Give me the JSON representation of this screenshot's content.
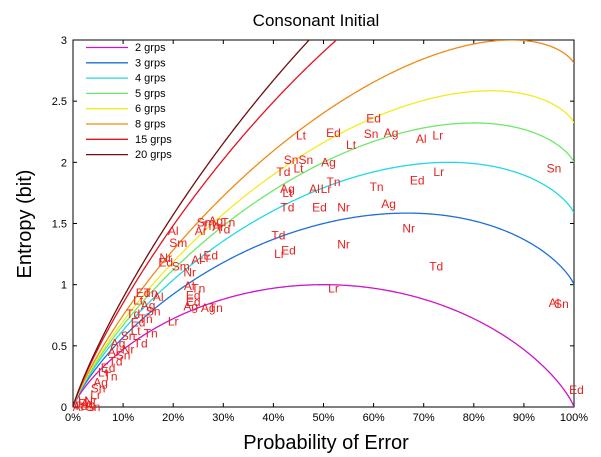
{
  "chart_data": {
    "type": "line",
    "title": "Consonant Initial",
    "xlabel": "Probability of Error",
    "ylabel": "Entropy (bit)",
    "xlim": [
      0,
      1
    ],
    "ylim": [
      0,
      3
    ],
    "xticks": [
      {
        "v": 0,
        "label": "0%"
      },
      {
        "v": 0.1,
        "label": "10%"
      },
      {
        "v": 0.2,
        "label": "20%"
      },
      {
        "v": 0.3,
        "label": "30%"
      },
      {
        "v": 0.4,
        "label": "40%"
      },
      {
        "v": 0.5,
        "label": "50%"
      },
      {
        "v": 0.6,
        "label": "60%"
      },
      {
        "v": 0.7,
        "label": "70%"
      },
      {
        "v": 0.8,
        "label": "80%"
      },
      {
        "v": 0.9,
        "label": "90%"
      },
      {
        "v": 1,
        "label": "100%"
      }
    ],
    "yticks": [
      {
        "v": 0,
        "label": "0"
      },
      {
        "v": 0.5,
        "label": "0.5"
      },
      {
        "v": 1,
        "label": "1"
      },
      {
        "v": 1.5,
        "label": "1.5"
      },
      {
        "v": 2,
        "label": "2"
      },
      {
        "v": 2.5,
        "label": "2.5"
      },
      {
        "v": 3,
        "label": "3"
      }
    ],
    "legend_position": "top-left",
    "series": [
      {
        "name": "2 grps",
        "groups": 2,
        "color": "#cc14c8"
      },
      {
        "name": "3 grps",
        "groups": 3,
        "color": "#1e6fd9"
      },
      {
        "name": "4 grps",
        "groups": 4,
        "color": "#22d8e6"
      },
      {
        "name": "5 grps",
        "groups": 5,
        "color": "#6ee86a"
      },
      {
        "name": "6 grps",
        "groups": 6,
        "color": "#f2ec1e"
      },
      {
        "name": "8 grps",
        "groups": 8,
        "color": "#ef8a16"
      },
      {
        "name": "15 grps",
        "groups": 15,
        "color": "#e0141e"
      },
      {
        "name": "20 grps",
        "groups": 20,
        "color": "#6e0e10"
      }
    ],
    "points": [
      {
        "label": "Ed",
        "x": 0.6,
        "y": 2.36
      },
      {
        "label": "Lt",
        "x": 0.455,
        "y": 2.22
      },
      {
        "label": "Ed",
        "x": 0.52,
        "y": 2.24
      },
      {
        "label": "Sn",
        "x": 0.595,
        "y": 2.23
      },
      {
        "label": "Ag",
        "x": 0.635,
        "y": 2.24
      },
      {
        "label": "Al",
        "x": 0.695,
        "y": 2.19
      },
      {
        "label": "Lr",
        "x": 0.728,
        "y": 2.22
      },
      {
        "label": "Lt",
        "x": 0.555,
        "y": 2.14
      },
      {
        "label": "Sn",
        "x": 0.96,
        "y": 1.95
      },
      {
        "label": "Ag",
        "x": 0.51,
        "y": 2.0
      },
      {
        "label": "SnSn",
        "x": 0.45,
        "y": 2.02
      },
      {
        "label": "Lt",
        "x": 0.45,
        "y": 1.95
      },
      {
        "label": "Td",
        "x": 0.42,
        "y": 1.92
      },
      {
        "label": "Tn",
        "x": 0.52,
        "y": 1.84
      },
      {
        "label": "Al",
        "x": 0.482,
        "y": 1.78
      },
      {
        "label": "Lr",
        "x": 0.505,
        "y": 1.78
      },
      {
        "label": "Ag",
        "x": 0.428,
        "y": 1.78
      },
      {
        "label": "Lt",
        "x": 0.428,
        "y": 1.75
      },
      {
        "label": "Tn",
        "x": 0.606,
        "y": 1.8
      },
      {
        "label": "Ed",
        "x": 0.687,
        "y": 1.85
      },
      {
        "label": "Lr",
        "x": 0.73,
        "y": 1.92
      },
      {
        "label": "Td",
        "x": 0.428,
        "y": 1.63
      },
      {
        "label": "Ed",
        "x": 0.492,
        "y": 1.63
      },
      {
        "label": "Nr",
        "x": 0.54,
        "y": 1.63
      },
      {
        "label": "Ag",
        "x": 0.63,
        "y": 1.66
      },
      {
        "label": "Td",
        "x": 0.41,
        "y": 1.4
      },
      {
        "label": "Nr",
        "x": 0.67,
        "y": 1.46
      },
      {
        "label": "Ed",
        "x": 0.43,
        "y": 1.28
      },
      {
        "label": "Lr",
        "x": 0.412,
        "y": 1.25
      },
      {
        "label": "Nr",
        "x": 0.54,
        "y": 1.33
      },
      {
        "label": "Td",
        "x": 0.725,
        "y": 1.15
      },
      {
        "label": "Lr",
        "x": 0.52,
        "y": 0.97
      },
      {
        "label": "Al",
        "x": 0.96,
        "y": 0.85
      },
      {
        "label": "Sn",
        "x": 0.975,
        "y": 0.84
      },
      {
        "label": "Ed",
        "x": 1.005,
        "y": 0.14
      },
      {
        "label": "Al",
        "x": 0.2,
        "y": 1.44
      },
      {
        "label": "Sm",
        "x": 0.21,
        "y": 1.34
      },
      {
        "label": "Sm",
        "x": 0.265,
        "y": 1.51
      },
      {
        "label": "Ag",
        "x": 0.285,
        "y": 1.52
      },
      {
        "label": "Tn",
        "x": 0.31,
        "y": 1.51
      },
      {
        "label": "Ar",
        "x": 0.255,
        "y": 1.44
      },
      {
        "label": "Tn",
        "x": 0.27,
        "y": 1.48
      },
      {
        "label": "Ar",
        "x": 0.29,
        "y": 1.47
      },
      {
        "label": "Td",
        "x": 0.3,
        "y": 1.45
      },
      {
        "label": "Nr",
        "x": 0.185,
        "y": 1.22
      },
      {
        "label": "Ed",
        "x": 0.185,
        "y": 1.18
      },
      {
        "label": "Sm",
        "x": 0.215,
        "y": 1.15
      },
      {
        "label": "Nr",
        "x": 0.233,
        "y": 1.1
      },
      {
        "label": "Lr",
        "x": 0.262,
        "y": 1.22
      },
      {
        "label": "Ed",
        "x": 0.275,
        "y": 1.24
      },
      {
        "label": "Ar",
        "x": 0.248,
        "y": 1.2
      },
      {
        "label": "Al",
        "x": 0.232,
        "y": 0.99
      },
      {
        "label": "Tn",
        "x": 0.25,
        "y": 0.97
      },
      {
        "label": "Ed",
        "x": 0.24,
        "y": 0.91
      },
      {
        "label": "Ed",
        "x": 0.24,
        "y": 0.86
      },
      {
        "label": "Ag",
        "x": 0.235,
        "y": 0.82
      },
      {
        "label": "Ag",
        "x": 0.27,
        "y": 0.81
      },
      {
        "label": "Tn",
        "x": 0.285,
        "y": 0.81
      },
      {
        "label": "Lr",
        "x": 0.2,
        "y": 0.7
      },
      {
        "label": "Ed",
        "x": 0.14,
        "y": 0.93
      },
      {
        "label": "Tn",
        "x": 0.155,
        "y": 0.93
      },
      {
        "label": "Al",
        "x": 0.17,
        "y": 0.9
      },
      {
        "label": "Lt",
        "x": 0.13,
        "y": 0.87
      },
      {
        "label": "Ag",
        "x": 0.15,
        "y": 0.83
      },
      {
        "label": "Sn",
        "x": 0.16,
        "y": 0.78
      },
      {
        "label": "Td",
        "x": 0.12,
        "y": 0.76
      },
      {
        "label": "Tn",
        "x": 0.145,
        "y": 0.72
      },
      {
        "label": "Ed",
        "x": 0.13,
        "y": 0.69
      },
      {
        "label": "Tn",
        "x": 0.155,
        "y": 0.6
      },
      {
        "label": "Lt",
        "x": 0.125,
        "y": 0.62
      },
      {
        "label": "Sn",
        "x": 0.11,
        "y": 0.58
      },
      {
        "label": "Td",
        "x": 0.135,
        "y": 0.52
      },
      {
        "label": "Nr",
        "x": 0.11,
        "y": 0.47
      },
      {
        "label": "Ag",
        "x": 0.09,
        "y": 0.52
      },
      {
        "label": "Sn",
        "x": 0.1,
        "y": 0.42
      },
      {
        "label": "Td",
        "x": 0.085,
        "y": 0.37
      },
      {
        "label": "Al",
        "x": 0.08,
        "y": 0.45
      },
      {
        "label": "Ed",
        "x": 0.07,
        "y": 0.32
      },
      {
        "label": "Lt",
        "x": 0.06,
        "y": 0.28
      },
      {
        "label": "Tn",
        "x": 0.075,
        "y": 0.25
      },
      {
        "label": "Ag",
        "x": 0.055,
        "y": 0.2
      },
      {
        "label": "Sn",
        "x": 0.05,
        "y": 0.15
      },
      {
        "label": "Lr",
        "x": 0.045,
        "y": 0.1
      },
      {
        "label": "Nr",
        "x": 0.035,
        "y": 0.05
      },
      {
        "label": "Ed",
        "x": 0.025,
        "y": 0.03
      },
      {
        "label": "Td",
        "x": 0.015,
        "y": 0.01
      },
      {
        "label": "Al",
        "x": 0.01,
        "y": 0.0
      },
      {
        "label": "Ag",
        "x": 0.03,
        "y": 0.02
      },
      {
        "label": "Lt",
        "x": 0.02,
        "y": 0.05
      },
      {
        "label": "Sn",
        "x": 0.04,
        "y": 0.0
      }
    ]
  }
}
